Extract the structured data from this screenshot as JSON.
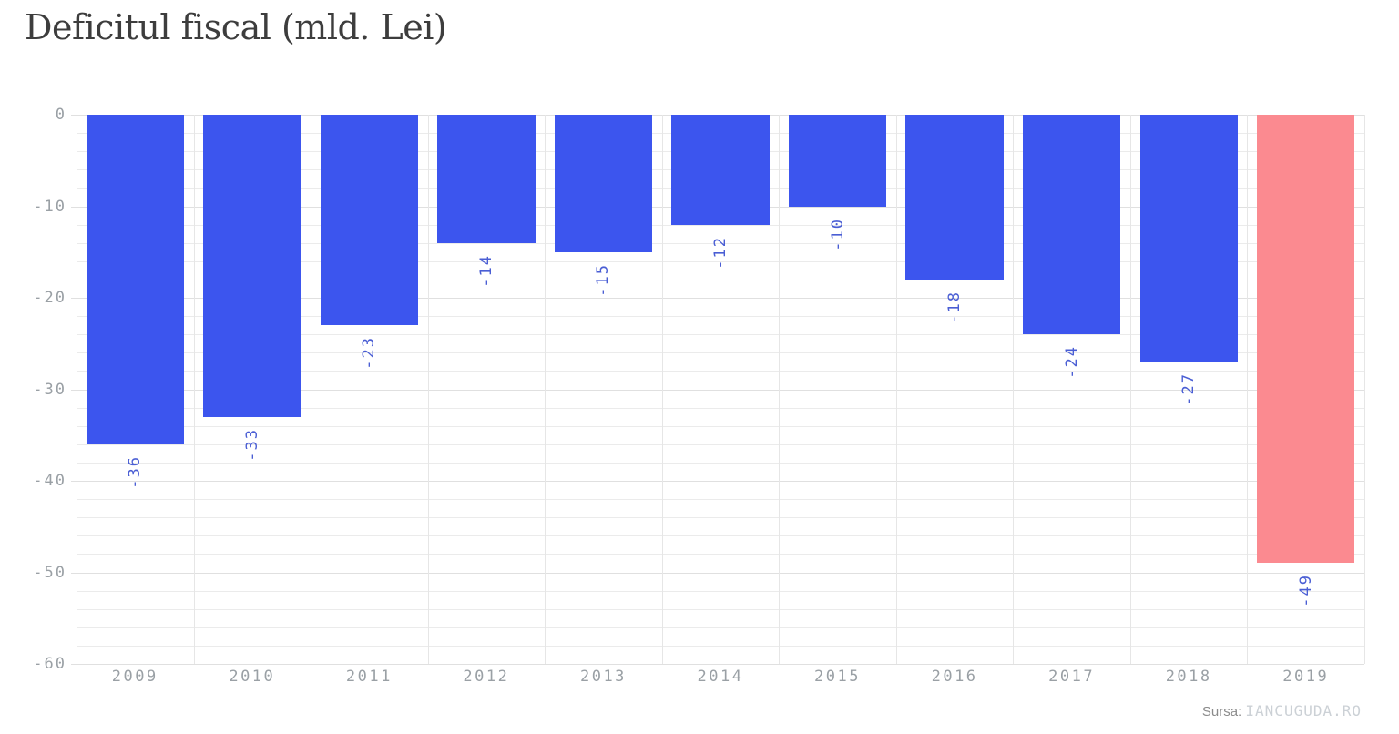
{
  "title": "Deficitul fiscal (mld. Lei)",
  "source": {
    "label": "Sursa:",
    "site": "IANCUGUDA.RO"
  },
  "chart_data": {
    "type": "bar",
    "title": "Deficitul fiscal (mld. Lei)",
    "categories": [
      "2009",
      "2010",
      "2011",
      "2012",
      "2013",
      "2014",
      "2015",
      "2016",
      "2017",
      "2018",
      "2019"
    ],
    "values": [
      -36,
      -33,
      -23,
      -14,
      -15,
      -12,
      -10,
      -18,
      -24,
      -27,
      -49
    ],
    "bar_labels": [
      "-36",
      "-33",
      "-23",
      "-14",
      "-15",
      "-12",
      "-10",
      "-18",
      "-24",
      "-27",
      "-49"
    ],
    "bar_colors": [
      "#3c55ee",
      "#3c55ee",
      "#3c55ee",
      "#3c55ee",
      "#3c55ee",
      "#3c55ee",
      "#3c55ee",
      "#3c55ee",
      "#3c55ee",
      "#3c55ee",
      "#fb8a90"
    ],
    "highlight_category": "2019",
    "xlabel": "",
    "ylabel": "",
    "ylim": [
      -60,
      0
    ],
    "ytick_values": [
      0,
      -10,
      -20,
      -30,
      -40,
      -50,
      -60
    ],
    "ytick_labels": [
      "0",
      "-10",
      "-20",
      "-30",
      "-40",
      "-50",
      "-60"
    ],
    "minor_grid_step": 2,
    "grid": true,
    "legend_position": "none",
    "value_label_color": "#4a5ed4",
    "axis_label_color": "#9aa0a5",
    "grid_color_major": "#e0e0e0",
    "grid_color_minor": "#ebebeb",
    "bar_color_default": "#3c55ee",
    "bar_color_highlight": "#fb8a90"
  }
}
